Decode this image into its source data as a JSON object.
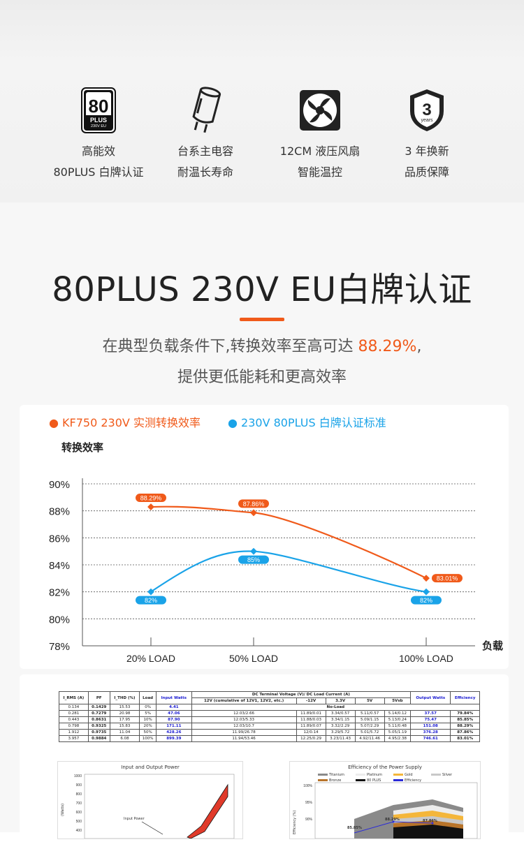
{
  "features": [
    {
      "icon": "80plus-badge-icon",
      "badge": {
        "big": "80",
        "plus": "PLUS",
        "sub": "230V EU"
      },
      "line1": "高能效",
      "line2": "80PLUS 白牌认证"
    },
    {
      "icon": "capacitor-icon",
      "line1": "台系主电容",
      "line2": "耐温长寿命"
    },
    {
      "icon": "fan-icon",
      "line1": "12CM 液压风扇",
      "line2": "智能温控"
    },
    {
      "icon": "warranty-shield-icon",
      "badge": {
        "big": "3",
        "sub": "years"
      },
      "line1": "3 年换新",
      "line2": "品质保障"
    }
  ],
  "section": {
    "title": "80PLUS 230V EU白牌认证",
    "sub1_pre": "在典型负载条件下,转换效率至高可达 ",
    "sub1_hl": "88.29%",
    "sub1_post": ",",
    "sub2": "提供更低能耗和更高效率"
  },
  "colors": {
    "accent": "#f05a1a",
    "blue": "#1aa3e8"
  },
  "chart_data": {
    "type": "line",
    "ylabel": "转换效率",
    "xlabel": "负载",
    "categories": [
      "20% LOAD",
      "50% LOAD",
      "100% LOAD"
    ],
    "yticks": [
      "90%",
      "88%",
      "86%",
      "84%",
      "82%",
      "80%",
      "78%"
    ],
    "ylim": [
      78,
      91
    ],
    "grid": true,
    "series": [
      {
        "name": "KF750 230V 实测转换效率",
        "color": "#f05a1a",
        "values": [
          88.29,
          87.86,
          83.01
        ],
        "labels": [
          "88.29%",
          "87.86%",
          "83.01%"
        ]
      },
      {
        "name": "230V 80PLUS 白牌认证标准",
        "color": "#1aa3e8",
        "values": [
          82,
          85,
          82
        ],
        "labels": [
          "82%",
          "85%",
          "82%"
        ]
      }
    ]
  },
  "table": {
    "headers": [
      "I_RMS (A)",
      "PF",
      "I_THD (%)",
      "Load",
      "Input Watts",
      "DC Terminal Voltage (V)/ DC Load Current (A)",
      "Output Watts",
      "Efficiency"
    ],
    "subheaders": [
      "12V (cumulative of 12V1, 12V2, etc.)",
      "-12V",
      "3.3V",
      "5V",
      "5Vsb"
    ],
    "noload": "No-Load",
    "rows": [
      [
        "0.134",
        "0.1429",
        "15.53",
        "0%",
        "4.41",
        "",
        "",
        "",
        "",
        "",
        "",
        ""
      ],
      [
        "0.281",
        "0.7279",
        "20.98",
        "5%",
        "47.06",
        "12.03/2.66",
        "11.89/0.01",
        "3.34/0.57",
        "5.11/0.57",
        "5.14/0.12",
        "37.57",
        "79.84%"
      ],
      [
        "0.443",
        "0.8631",
        "17.95",
        "10%",
        "87.90",
        "12.03/5.33",
        "11.88/0.03",
        "3.34/1.15",
        "5.09/1.15",
        "5.13/0.24",
        "75.47",
        "85.85%"
      ],
      [
        "0.798",
        "0.9325",
        "15.83",
        "20%",
        "171.11",
        "12.03/10.7",
        "11.89/0.07",
        "3.32/2.29",
        "5.07/2.29",
        "5.11/0.48",
        "151.08",
        "88.29%"
      ],
      [
        "1.912",
        "0.9735",
        "11.04",
        "50%",
        "428.26",
        "11.99/26.78",
        "12/0.14",
        "3.29/5.72",
        "5.01/5.72",
        "5.05/1.19",
        "376.28",
        "87.86%"
      ],
      [
        "3.957",
        "0.9884",
        "6.08",
        "100%",
        "899.39",
        "11.94/53.46",
        "12.25/0.29",
        "3.23/11.43",
        "4.92/11.46",
        "4.95/2.38",
        "746.61",
        "83.01%"
      ]
    ]
  },
  "mini_left": {
    "title": "Input and Output Power",
    "ylabel": "(Watts)",
    "yticks": [
      "1000",
      "900",
      "800",
      "700",
      "600",
      "500",
      "400"
    ],
    "annotation": "Input Power"
  },
  "mini_right": {
    "title": "Efficiency of the Power Supply",
    "legend": [
      "Titanium",
      "Platinum",
      "Gold",
      "Silver",
      "Bronze",
      "80 PLUS",
      "Efficiency"
    ],
    "yticks": [
      "100%",
      "95%",
      "90%"
    ],
    "ylabel": "Efficiency (%)",
    "points": [
      "85.85%",
      "88.29%",
      "87.86%"
    ]
  }
}
